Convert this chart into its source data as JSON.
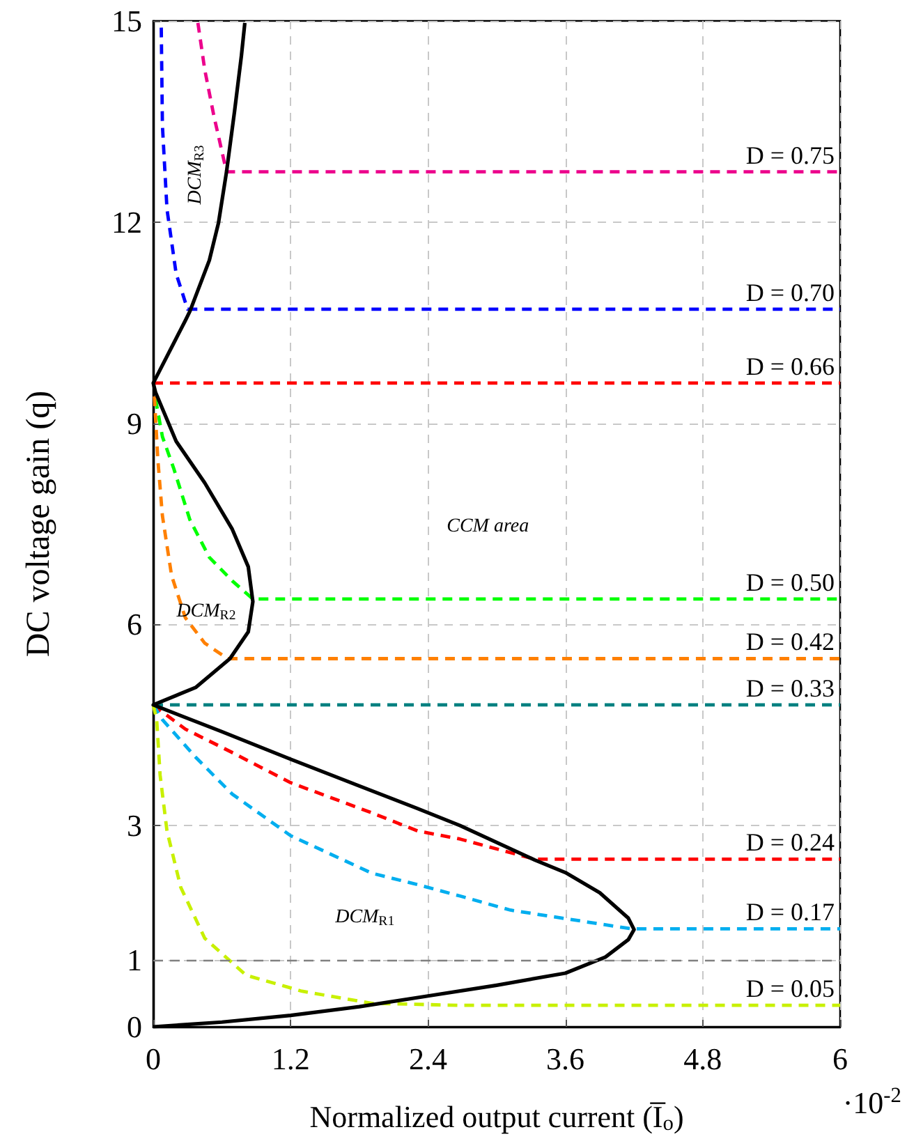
{
  "chart_data": {
    "type": "line",
    "xlabel": "Normalized output current (I̅$_{o}$)",
    "ylabel": "DC voltage gain (q)",
    "xlim": [
      0,
      6
    ],
    "xticks": [
      0,
      1.2,
      2.4,
      3.6,
      4.8,
      6
    ],
    "ylim": [
      0,
      15
    ],
    "yticks": [
      0,
      1,
      3,
      6,
      9,
      12,
      15
    ],
    "grid": true,
    "legend": false,
    "marker": "none",
    "line_style": "dashed",
    "ref_lines": [
      {
        "axis": "y",
        "value": 1,
        "color": "#808080",
        "line_style": "dashed"
      }
    ],
    "annotations": [
      "DCM$_{R3}$",
      "DCM$_{R2}$",
      "DCM$_{R1}$",
      "CCM area",
      "·10$^{-2}$"
    ],
    "series": [
      {
        "color": "#000000",
        "line_style": "solid",
        "x": [
          0,
          0.6,
          1.2,
          1.8,
          2.4,
          3.0,
          3.6,
          3.95,
          4.15,
          4.2,
          4.15,
          3.9,
          3.6,
          3.33,
          2.68,
          2.3,
          1.2,
          0.6,
          0,
          0.37,
          0.67,
          0.83,
          0.87,
          0.83,
          0.69,
          0.45,
          0.2,
          0.02,
          0,
          0.28,
          0.32,
          0.49,
          0.57,
          0.64,
          0.71,
          0.77,
          0.8
        ],
        "values": [
          0,
          0.07,
          0.17,
          0.3,
          0.46,
          0.62,
          0.8,
          1.04,
          1.3,
          1.45,
          1.62,
          2.0,
          2.3,
          2.49,
          3.0,
          3.26,
          3.99,
          4.4,
          4.8,
          5.06,
          5.49,
          5.89,
          6.34,
          6.86,
          7.42,
          8.11,
          8.73,
          9.46,
          9.6,
          10.53,
          10.67,
          11.43,
          11.99,
          12.75,
          13.65,
          14.48,
          14.97
        ]
      },
      {
        "name": "D = 0.75",
        "color": "#ec008c",
        "x": [
          0.39,
          0.45,
          0.53,
          0.64,
          6
        ],
        "values": [
          14.97,
          14.27,
          13.58,
          12.75,
          12.75
        ]
      },
      {
        "name": "D = 0.70",
        "color": "#0000ff",
        "x": [
          0.07,
          0.08,
          0.12,
          0.2,
          0.3,
          6
        ],
        "values": [
          14.9,
          13.44,
          12.19,
          11.23,
          10.7,
          10.7
        ]
      },
      {
        "name": "D = 0.66",
        "color": "#ff0000",
        "x": [
          0,
          6
        ],
        "values": [
          9.6,
          9.6
        ]
      },
      {
        "name": "D = 0.50",
        "color": "#00ff00",
        "x": [
          0.02,
          0.08,
          0.18,
          0.32,
          0.49,
          0.69,
          0.87,
          6
        ],
        "values": [
          9.36,
          8.8,
          8.32,
          7.56,
          7.0,
          6.65,
          6.38,
          6.38
        ]
      },
      {
        "name": "D = 0.42",
        "color": "#ff8000",
        "x": [
          0.01,
          0.04,
          0.08,
          0.16,
          0.28,
          0.45,
          0.65,
          6
        ],
        "values": [
          9.4,
          8.46,
          7.62,
          6.73,
          6.1,
          5.72,
          5.49,
          5.49
        ]
      },
      {
        "name": "D = 0.33",
        "color": "#008080",
        "x": [
          0,
          6
        ],
        "values": [
          4.8,
          4.8
        ]
      },
      {
        "name": "D = 0.24",
        "color": "#ff0000",
        "x": [
          0,
          0.06,
          0.28,
          0.69,
          1.2,
          1.91,
          2.31,
          2.68,
          3.33,
          6
        ],
        "values": [
          4.8,
          4.72,
          4.44,
          4.09,
          3.64,
          3.19,
          2.92,
          2.8,
          2.5,
          2.5
        ]
      },
      {
        "name": "D = 0.17",
        "color": "#00aeef",
        "x": [
          0,
          0.08,
          0.37,
          0.69,
          1.2,
          1.91,
          2.31,
          2.68,
          3.12,
          4.18,
          6
        ],
        "values": [
          4.8,
          4.58,
          4.02,
          3.47,
          2.85,
          2.29,
          2.12,
          1.95,
          1.74,
          1.46,
          1.46
        ]
      },
      {
        "name": "D = 0.05",
        "color": "#c8f000",
        "x": [
          0,
          0.03,
          0.06,
          0.12,
          0.24,
          0.45,
          0.81,
          1.3,
          1.91,
          2.68,
          6
        ],
        "values": [
          4.8,
          4.58,
          3.75,
          2.92,
          2.08,
          1.32,
          0.77,
          0.53,
          0.35,
          0.32,
          0.32
        ]
      }
    ]
  }
}
